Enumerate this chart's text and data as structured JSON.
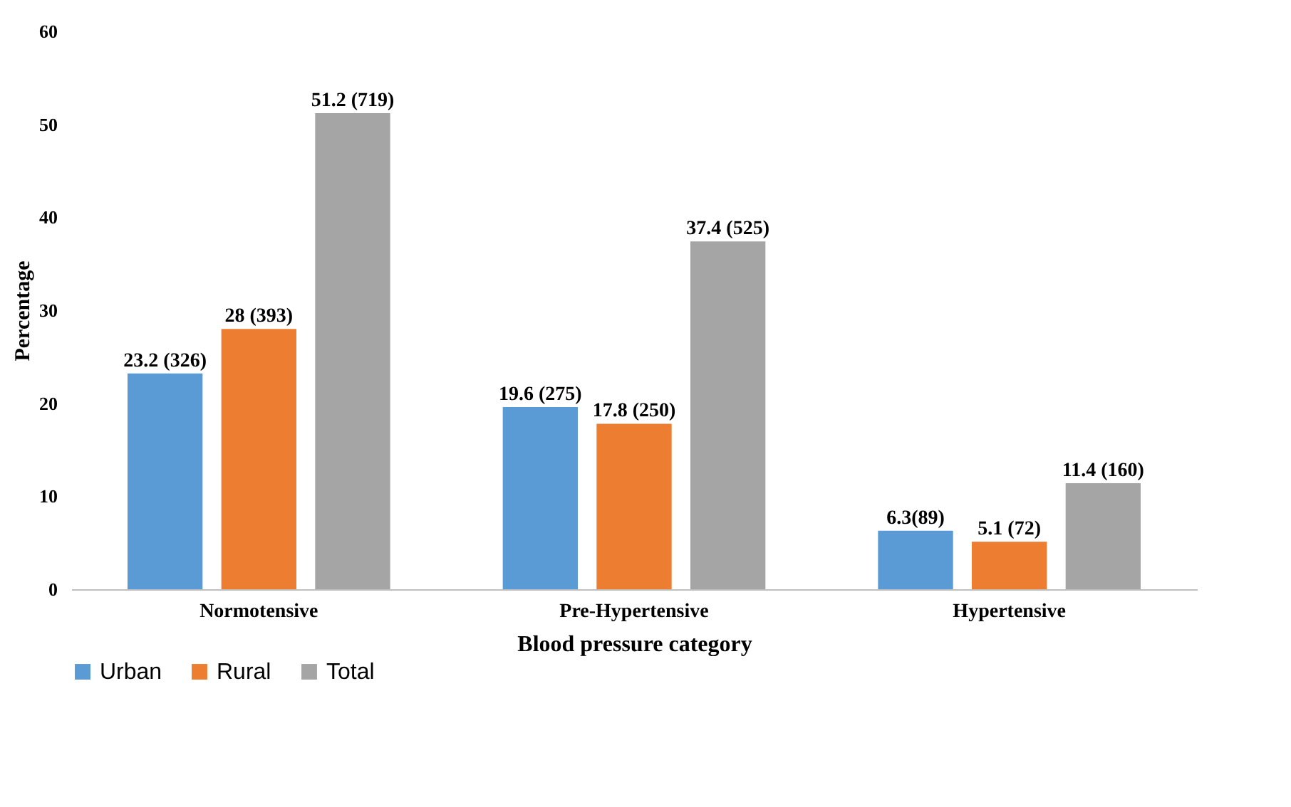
{
  "chart_data": {
    "type": "bar",
    "xlabel": "Blood pressure category",
    "ylabel": "Percentage",
    "categories": [
      "Normotensive",
      "Pre-Hypertensive",
      "Hypertensive"
    ],
    "series": [
      {
        "name": "Urban",
        "color": "#5b9bd5",
        "values": [
          23.2,
          19.6,
          6.3
        ],
        "value_labels": [
          "23.2 (326)",
          "19.6 (275)",
          "6.3(89)"
        ]
      },
      {
        "name": "Rural",
        "color": "#ed7d31",
        "values": [
          28,
          17.8,
          5.1
        ],
        "value_labels": [
          "28 (393)",
          "17.8 (250)",
          "5.1 (72)"
        ]
      },
      {
        "name": "Total",
        "color": "#a5a5a5",
        "values": [
          51.2,
          37.4,
          11.4
        ],
        "value_labels": [
          "51.2 (719)",
          "37.4 (525)",
          "11.4 (160)"
        ]
      }
    ],
    "ylim": [
      0,
      60
    ],
    "yticks": [
      0,
      10,
      20,
      30,
      40,
      50,
      60
    ],
    "grid": false,
    "legend": "bottom"
  }
}
